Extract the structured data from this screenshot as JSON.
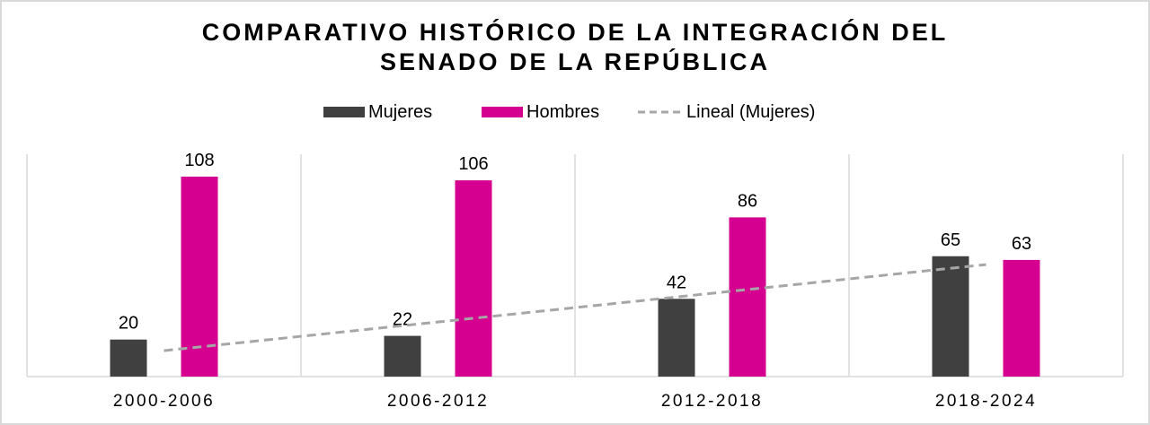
{
  "chart_data": {
    "type": "bar",
    "title": "COMPARATIVO HISTÓRICO DE LA INTEGRACIÓN DEL SENADO DE LA REPÚBLICA",
    "title_lines": [
      "COMPARATIVO HISTÓRICO DE LA INTEGRACIÓN DEL",
      "SENADO DE LA REPÚBLICA"
    ],
    "categories": [
      "2000-2006",
      "2006-2012",
      "2012-2018",
      "2018-2024"
    ],
    "series": [
      {
        "name": "Mujeres",
        "color": "#404040",
        "values": [
          20,
          22,
          42,
          65
        ]
      },
      {
        "name": "Hombres",
        "color": "#d5008f",
        "values": [
          108,
          106,
          86,
          63
        ]
      }
    ],
    "trendline": {
      "name": "Lineal (Mujeres)",
      "of_series": "Mujeres",
      "type": "linear",
      "color": "#a6a6a6",
      "style": "dashed"
    },
    "legend": {
      "position": "top",
      "entries": [
        "Mujeres",
        "Hombres",
        "Lineal (Mujeres)"
      ]
    },
    "xlabel": "",
    "ylabel": "",
    "ylim": [
      0,
      120
    ],
    "y_axis_visible": false,
    "data_labels": true,
    "grid": "vertical category separators"
  }
}
